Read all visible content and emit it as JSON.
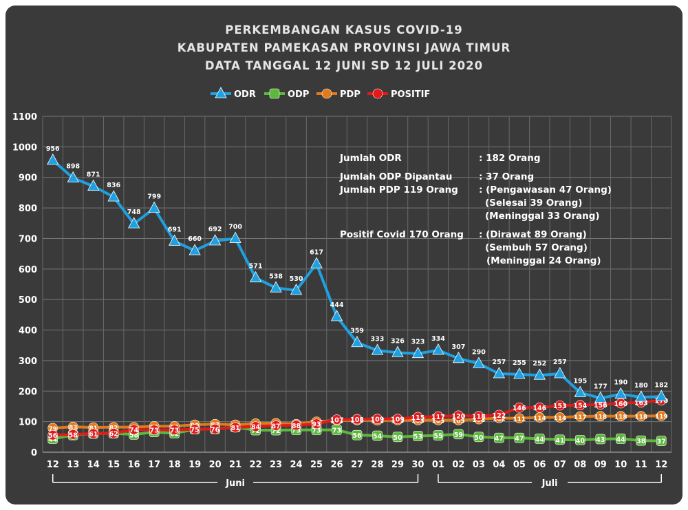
{
  "chart_data": {
    "type": "line",
    "title_lines": [
      "PERKEMBANGAN KASUS COVID-19",
      "KABUPATEN PAMEKASAN PROVINSI JAWA TIMUR",
      "DATA TANGGAL 12 JUNI SD 12 JULI 2020"
    ],
    "x": [
      "12",
      "13",
      "14",
      "15",
      "16",
      "17",
      "18",
      "19",
      "20",
      "21",
      "22",
      "23",
      "24",
      "25",
      "26",
      "27",
      "28",
      "29",
      "30",
      "01",
      "02",
      "03",
      "04",
      "05",
      "06",
      "07",
      "08",
      "09",
      "10",
      "11",
      "12"
    ],
    "ylim": [
      0,
      1100
    ],
    "yticks": [
      0,
      100,
      200,
      300,
      400,
      500,
      600,
      700,
      800,
      900,
      1000,
      1100
    ],
    "grid": true,
    "legend_position": "top-center",
    "month_groups": [
      {
        "label": "Juni",
        "start": 0,
        "end": 18
      },
      {
        "label": "Juli",
        "start": 19,
        "end": 30
      }
    ],
    "series": [
      {
        "name": "ODR",
        "color": "#1fa0e0",
        "marker": "triangle",
        "values": [
          956,
          898,
          871,
          836,
          748,
          799,
          691,
          660,
          692,
          700,
          571,
          538,
          530,
          617,
          444,
          359,
          333,
          326,
          323,
          334,
          307,
          290,
          257,
          255,
          252,
          257,
          195,
          177,
          190,
          180,
          182
        ]
      },
      {
        "name": "ODP",
        "color": "#5cb83a",
        "marker": "square",
        "values": [
          44,
          56,
          61,
          62,
          58,
          66,
          62,
          75,
          76,
          82,
          72,
          72,
          73,
          73,
          73,
          56,
          54,
          50,
          53,
          55,
          59,
          50,
          47,
          47,
          44,
          41,
          40,
          43,
          44,
          38,
          37
        ]
      },
      {
        "name": "PDP",
        "color": "#e07a1a",
        "marker": "circle",
        "values": [
          79,
          83,
          81,
          82,
          82,
          85,
          85,
          90,
          92,
          90,
          94,
          95,
          92,
          100,
          104,
          105,
          104,
          105,
          105,
          105,
          105,
          108,
          112,
          111,
          114,
          114,
          117,
          118,
          118,
          118,
          119
        ]
      },
      {
        "name": "POSITIF",
        "color": "#e21a1a",
        "marker": "circle",
        "values": [
          56,
          58,
          61,
          62,
          74,
          73,
          73,
          75,
          76,
          81,
          84,
          87,
          88,
          93,
          107,
          108,
          109,
          109,
          115,
          117,
          120,
          118,
          122,
          146,
          146,
          153,
          154,
          156,
          160,
          163,
          170
        ]
      }
    ]
  },
  "info": {
    "lines": [
      {
        "label": "Jumlah ODR",
        "value": ": 182 Orang"
      },
      {
        "label": "Jumlah ODP Dipantau",
        "value": ": 37 Orang"
      },
      {
        "label": "Jumlah PDP 119 Orang",
        "value": ": (Pengawasan 47 Orang)"
      },
      {
        "label": "",
        "value": "(Selesai 39 Orang)"
      },
      {
        "label": "",
        "value": "(Meninggal 33 Orang)"
      },
      {
        "label": "Positif Covid 170 Orang",
        "value": ": (Dirawat 89 Orang)"
      },
      {
        "label": "",
        "value": "(Sembuh 57 Orang)"
      },
      {
        "label": "",
        "value": "(Meninggal 24 Orang)"
      }
    ]
  }
}
